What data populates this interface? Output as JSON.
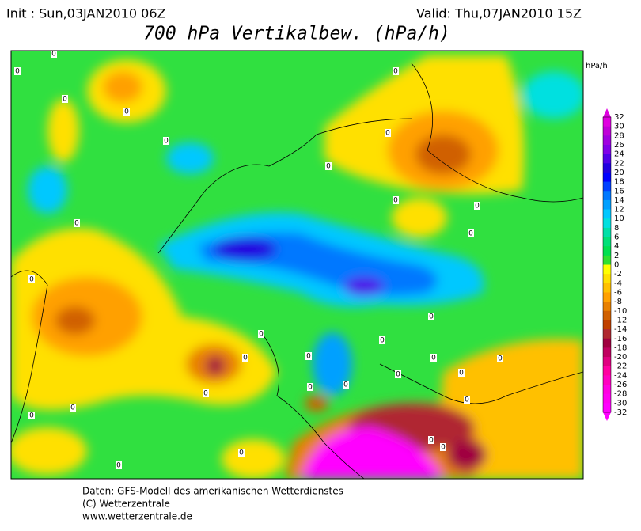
{
  "header": {
    "init": "Init : Sun,03JAN2010 06Z",
    "valid": "Valid: Thu,07JAN2010 15Z",
    "title": "700 hPa Vertikalbew. (hPa/h)"
  },
  "legend": {
    "unit": "hPa/h",
    "levels": [
      32,
      30,
      28,
      26,
      24,
      22,
      20,
      18,
      16,
      14,
      12,
      10,
      8,
      6,
      4,
      2,
      0,
      -2,
      -4,
      -6,
      -8,
      -10,
      -12,
      -14,
      -16,
      -18,
      -20,
      -22,
      -24,
      -26,
      -28,
      -30,
      -32
    ],
    "colors": [
      "#e000e0",
      "#c000d8",
      "#a000e0",
      "#8000e8",
      "#5000e8",
      "#2000e0",
      "#0000ff",
      "#0040ff",
      "#0078ff",
      "#00a0ff",
      "#00c8ff",
      "#00e0e0",
      "#00e0a8",
      "#00e078",
      "#00e050",
      "#30e030",
      "#ffff00",
      "#ffe000",
      "#ffc000",
      "#ffa000",
      "#e88000",
      "#d06000",
      "#c04000",
      "#b02830",
      "#a00040",
      "#c00060",
      "#e00080",
      "#ff00a0",
      "#ff00c0",
      "#ff00e0",
      "#ff00f0",
      "#ff00ff"
    ]
  },
  "map": {
    "contour_labels": [
      "0",
      "0",
      "0",
      "0",
      "0",
      "0",
      "0",
      "0",
      "0",
      "0",
      "0",
      "0",
      "0",
      "0",
      "0",
      "0",
      "0",
      "0",
      "0",
      "0",
      "0",
      "0",
      "0",
      "0",
      "0",
      "0",
      "0",
      "0",
      "0",
      "0",
      "0",
      "0"
    ]
  },
  "footer": {
    "lines": [
      "Daten: GFS-Modell des amerikanischen Wetterdienstes",
      "(C) Wetterzentrale",
      "www.wetterzentrale.de"
    ]
  }
}
